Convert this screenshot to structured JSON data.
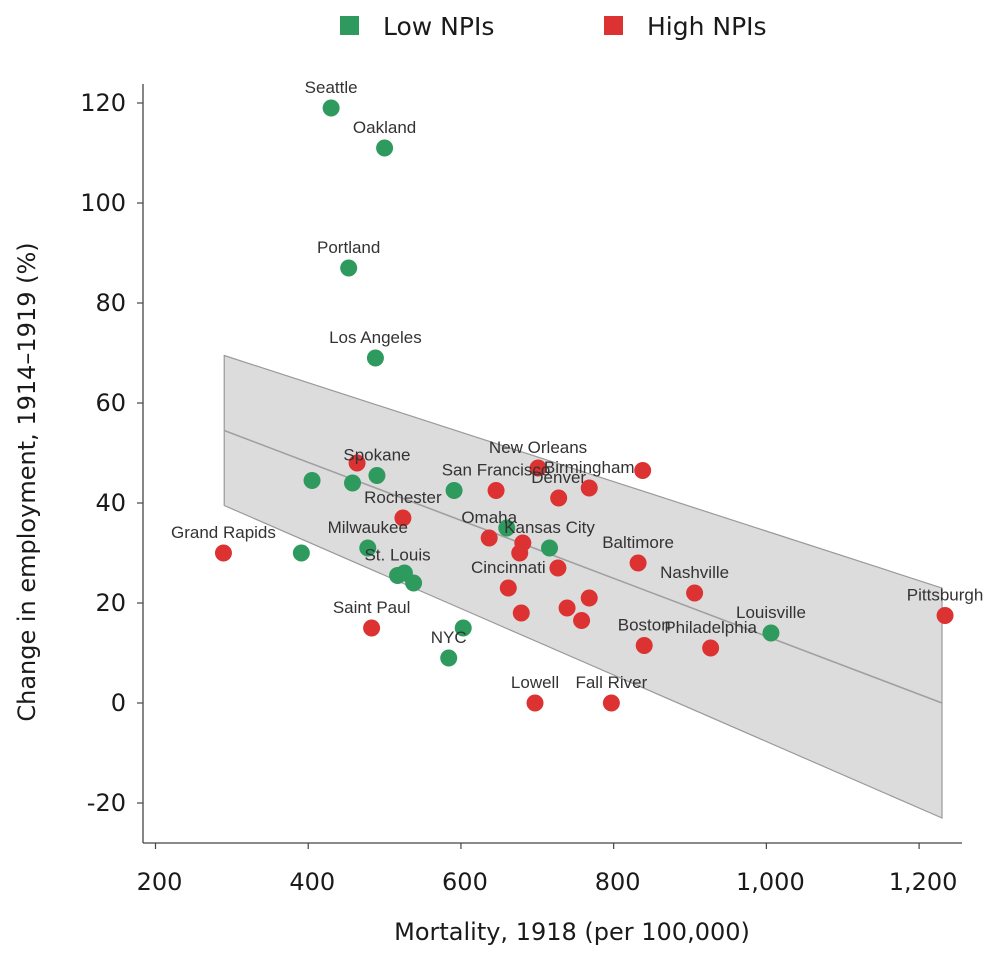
{
  "chart_data": {
    "type": "scatter",
    "xlabel": "Mortality, 1918 (per 100,000)",
    "ylabel": "Change in employment, 1914–1919 (%)",
    "xlim": [
      190,
      1260
    ],
    "ylim": [
      -28,
      124
    ],
    "x_ticks": [
      {
        "value": 200,
        "label": "200"
      },
      {
        "value": 400,
        "label": "400"
      },
      {
        "value": 600,
        "label": "600"
      },
      {
        "value": 800,
        "label": "800"
      },
      {
        "value": 1000,
        "label": "1,000"
      },
      {
        "value": 1200,
        "label": "1,200"
      }
    ],
    "y_ticks": [
      {
        "value": 120,
        "label": "120"
      },
      {
        "value": 100,
        "label": "100"
      },
      {
        "value": 80,
        "label": "80"
      },
      {
        "value": 60,
        "label": "60"
      },
      {
        "value": 40,
        "label": "40"
      },
      {
        "value": 20,
        "label": "20"
      },
      {
        "value": 0,
        "label": "0"
      },
      {
        "value": -20,
        "label": "-20"
      }
    ],
    "grid": false,
    "legend": {
      "position": "top",
      "entries": [
        {
          "name": "Low NPIs",
          "color": "#2e9a5e"
        },
        {
          "name": "High NPIs",
          "color": "#dc3232"
        }
      ]
    },
    "fit": {
      "x_start": 290,
      "y_start": 54.5,
      "x_end": 1230,
      "y_end": 0,
      "band_upper_start": 69.5,
      "band_upper_end": 23,
      "band_lower_start": 39.5,
      "band_lower_end": -23,
      "band_color": "#d6d6d6",
      "line_color": "#a0a0a0"
    },
    "series": [
      {
        "name": "Low NPIs",
        "color": "#2e9a5e",
        "points": [
          {
            "x": 430,
            "y": 119,
            "label": "Seattle"
          },
          {
            "x": 500,
            "y": 111,
            "label": "Oakland"
          },
          {
            "x": 453,
            "y": 87,
            "label": "Portland"
          },
          {
            "x": 488,
            "y": 69,
            "label": "Los Angeles"
          },
          {
            "x": 490,
            "y": 45.5,
            "label": "Spokane"
          },
          {
            "x": 405,
            "y": 44.5,
            "label": ""
          },
          {
            "x": 458,
            "y": 44,
            "label": ""
          },
          {
            "x": 591,
            "y": 42.5,
            "label": ""
          },
          {
            "x": 660,
            "y": 35,
            "label": ""
          },
          {
            "x": 716,
            "y": 31,
            "label": "Kansas City"
          },
          {
            "x": 391,
            "y": 30,
            "label": ""
          },
          {
            "x": 478,
            "y": 31,
            "label": "Milwaukee"
          },
          {
            "x": 517,
            "y": 25.5,
            "label": "St. Louis"
          },
          {
            "x": 526,
            "y": 26,
            "label": ""
          },
          {
            "x": 538,
            "y": 24,
            "label": ""
          },
          {
            "x": 603,
            "y": 15,
            "label": ""
          },
          {
            "x": 584,
            "y": 9,
            "label": "NYC"
          },
          {
            "x": 1006,
            "y": 14,
            "label": "Louisville"
          }
        ]
      },
      {
        "name": "High NPIs",
        "color": "#dc3232",
        "points": [
          {
            "x": 289,
            "y": 30,
            "label": "Grand Rapids"
          },
          {
            "x": 464,
            "y": 48,
            "label": ""
          },
          {
            "x": 524,
            "y": 37,
            "label": "Rochester"
          },
          {
            "x": 483,
            "y": 15,
            "label": "Saint Paul"
          },
          {
            "x": 646,
            "y": 42.5,
            "label": "San Francisco"
          },
          {
            "x": 701,
            "y": 47,
            "label": "New Orleans"
          },
          {
            "x": 728,
            "y": 41,
            "label": "Denver"
          },
          {
            "x": 768,
            "y": 43,
            "label": "Birmingham"
          },
          {
            "x": 838,
            "y": 46.5,
            "label": ""
          },
          {
            "x": 637,
            "y": 33,
            "label": "Omaha"
          },
          {
            "x": 677,
            "y": 30,
            "label": ""
          },
          {
            "x": 681,
            "y": 32,
            "label": ""
          },
          {
            "x": 727,
            "y": 27,
            "label": ""
          },
          {
            "x": 832,
            "y": 28,
            "label": "Baltimore"
          },
          {
            "x": 662,
            "y": 23,
            "label": "Cincinnati"
          },
          {
            "x": 768,
            "y": 21,
            "label": ""
          },
          {
            "x": 739,
            "y": 19,
            "label": ""
          },
          {
            "x": 679,
            "y": 18,
            "label": ""
          },
          {
            "x": 758,
            "y": 16.5,
            "label": ""
          },
          {
            "x": 906,
            "y": 22,
            "label": "Nashville"
          },
          {
            "x": 840,
            "y": 11.5,
            "label": "Boston"
          },
          {
            "x": 927,
            "y": 11,
            "label": "Philadelphia"
          },
          {
            "x": 1234,
            "y": 17.5,
            "label": "Pittsburgh"
          },
          {
            "x": 697,
            "y": 0,
            "label": "Lowell"
          },
          {
            "x": 797,
            "y": 0,
            "label": "Fall River"
          }
        ]
      }
    ]
  }
}
